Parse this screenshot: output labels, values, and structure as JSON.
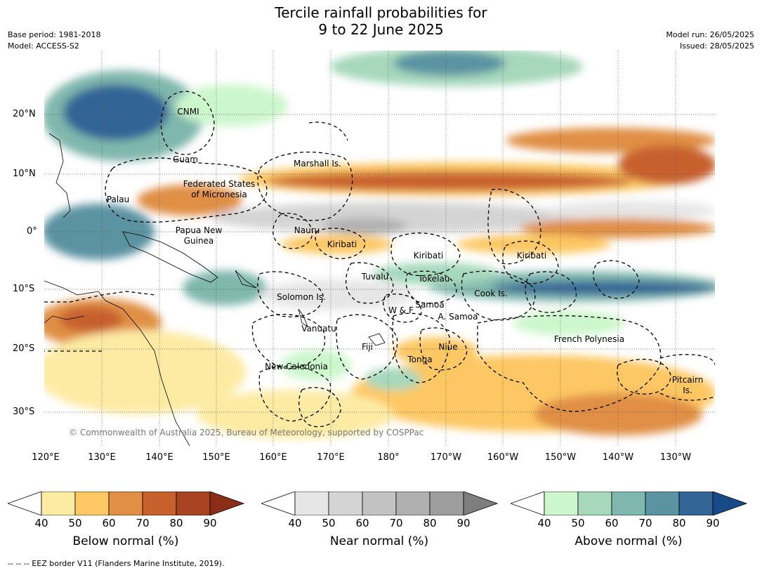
{
  "title_line1": "Tercile rainfall probabilities for",
  "title_line2": "9 to 22 June 2025",
  "base_period": "Base period: 1981-2018",
  "model": "Model: ACCESS-S2",
  "model_run": "Model run: 26/05/2025",
  "issued": "Issued: 28/05/2025",
  "copyright": "© Commonwealth of Australia 2025, Bureau of Meteorology, supported by COSPPac",
  "footnote": "-- -- -- EEZ border V11 (Flanders Marine Institute, 2019).",
  "map": {
    "lat_labels": [
      "20°N",
      "10°N",
      "0°",
      "10°S",
      "20°S",
      "30°S"
    ],
    "lon_labels": [
      "120°E",
      "130°E",
      "140°E",
      "150°E",
      "160°E",
      "170°E",
      "180°",
      "170°W",
      "160°W",
      "150°W",
      "140°W",
      "130°W"
    ],
    "regions": [
      "CNMI",
      "Guam",
      "Marshall Is.",
      "Federated States",
      "of Micronesia",
      "Palau",
      "Papua New",
      "Guinea",
      "Nauru",
      "Kiribati",
      "Kiribati",
      "Kiribati",
      "Tuvalu",
      "Tokelau",
      "Cook Is.",
      "Solomon Is.",
      "W & F",
      "Samoa",
      "A. Samoa",
      "Vanuatu",
      "Fiji",
      "Niue",
      "Tonga",
      "French Polynesia",
      "New Caledonia",
      "Pitcairn",
      "Is."
    ]
  },
  "colorbars": [
    {
      "label": "Below normal (%)",
      "ticks": [
        "40",
        "50",
        "60",
        "70",
        "80",
        "90"
      ],
      "colors": [
        "#ffffff",
        "#fdeba4",
        "#fdc864",
        "#e08f44",
        "#c8602e",
        "#a84422",
        "#8a2e18"
      ]
    },
    {
      "label": "Near normal (%)",
      "ticks": [
        "40",
        "50",
        "60",
        "70",
        "80",
        "90"
      ],
      "colors": [
        "#ffffff",
        "#e6e6e6",
        "#d4d4d4",
        "#c2c2c2",
        "#b0b0b0",
        "#9e9e9e",
        "#7e7e7e"
      ]
    },
    {
      "label": "Above normal (%)",
      "ticks": [
        "40",
        "50",
        "60",
        "70",
        "80",
        "90"
      ],
      "colors": [
        "#ffffff",
        "#ccf7cc",
        "#a6d8bc",
        "#80b7ad",
        "#5b93a2",
        "#336596",
        "#174a86"
      ]
    }
  ]
}
